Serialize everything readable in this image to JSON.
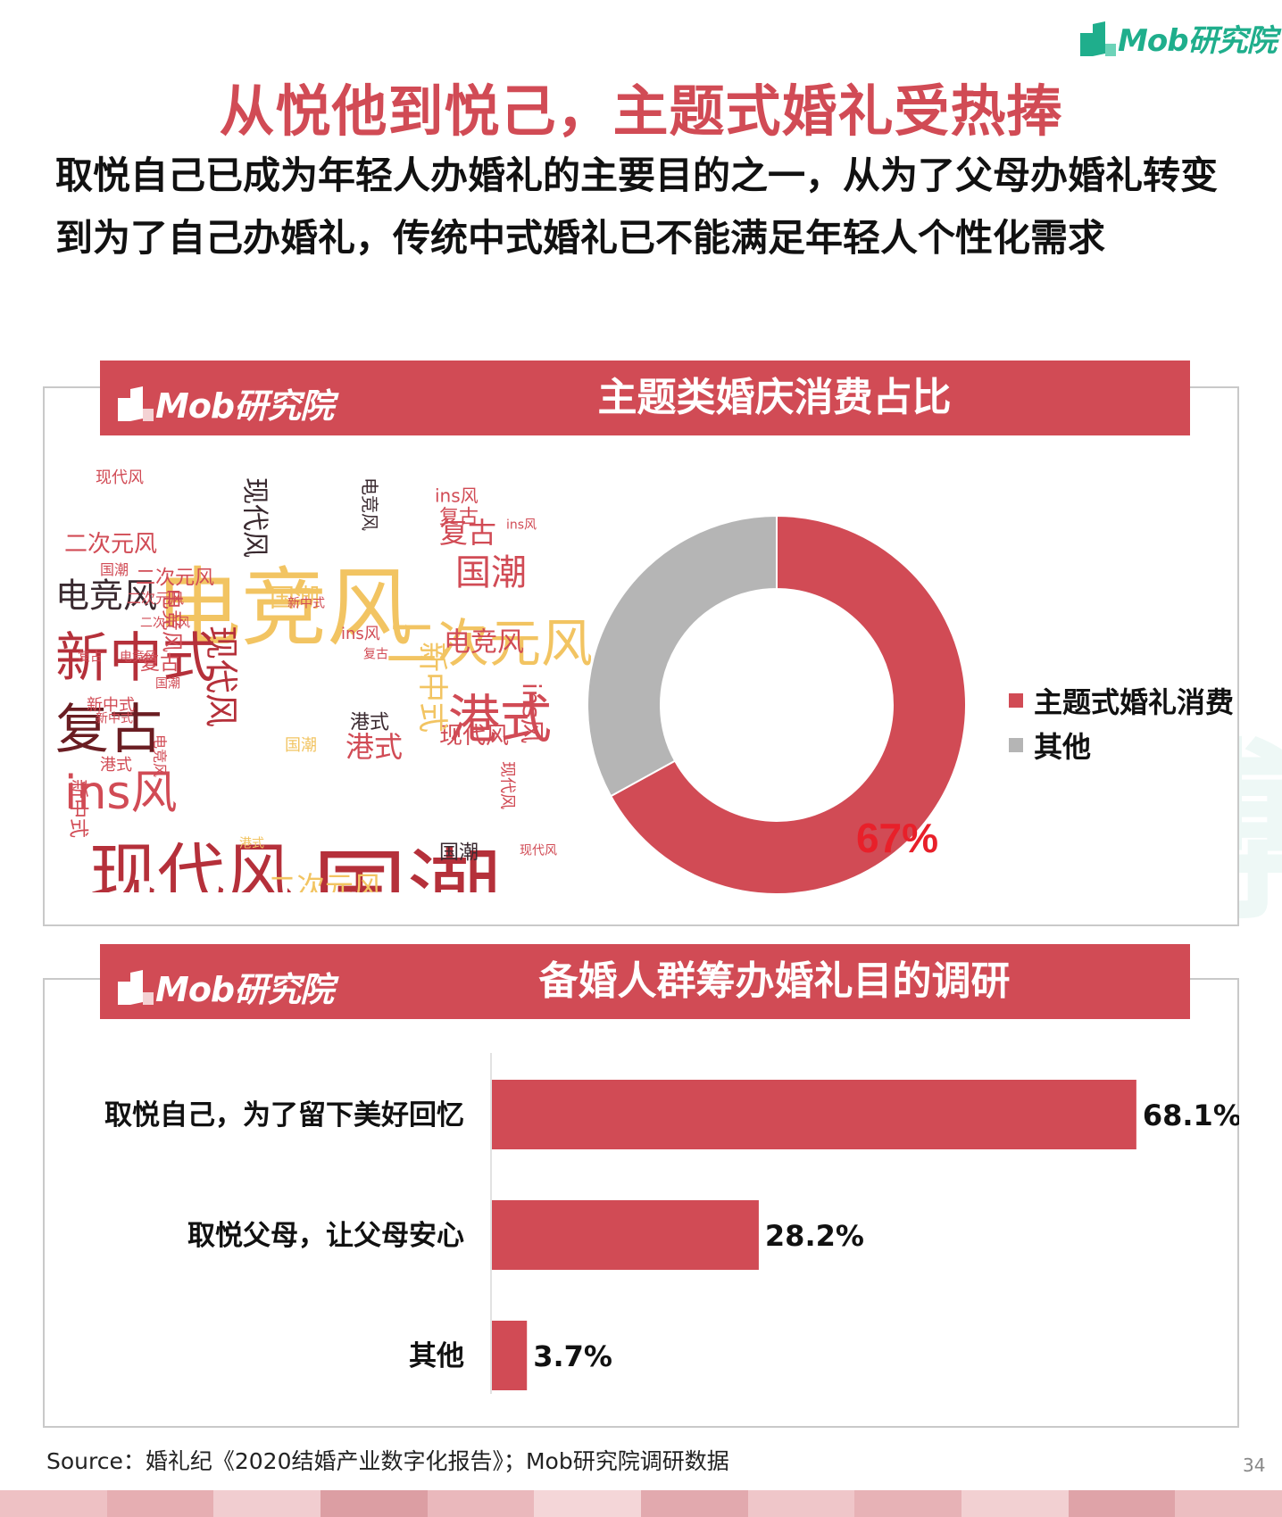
{
  "brand": {
    "name": "Mob研究院"
  },
  "title": "从悦他到悦己，主题式婚礼受热捧",
  "lead": "取悦自己已成为年轻人办婚礼的主要目的之一，从为了父母办婚礼转变到为了自己办婚礼，传统中式婚礼已不能满足年轻人个性化需求",
  "watermark": "MobTech 袤博",
  "panels": [
    {
      "title": "主题类婚庆消费占比"
    },
    {
      "title": "备婚人群筹办婚礼目的调研"
    }
  ],
  "colors": {
    "accent": "#d14b55",
    "brand_green": "#1fae8c",
    "gray": "#b5b5b5",
    "highlight": "#e8202a"
  },
  "chart_data": [
    {
      "type": "pie",
      "title": "主题类婚庆消费占比",
      "donut": true,
      "slices": [
        {
          "label": "主题式婚礼消费",
          "value": 67,
          "color": "#d14b55"
        },
        {
          "label": "其他",
          "value": 33,
          "color": "#b5b5b5"
        }
      ],
      "data_label": "67%",
      "legend": "right"
    },
    {
      "type": "bar",
      "orientation": "horizontal",
      "title": "备婚人群筹办婚礼目的调研",
      "categories": [
        "取悦自己，为了留下美好回忆",
        "取悦父母，让父母安心",
        "其他"
      ],
      "values": [
        68.1,
        28.2,
        3.7
      ],
      "value_labels": [
        "68.1%",
        "28.2%",
        "3.7%"
      ],
      "color": "#d14b55"
    }
  ],
  "wordcloud": [
    {
      "text": "电竞风",
      "color": "#f2c462",
      "dir": "h",
      "size": 96
    },
    {
      "text": "国潮",
      "color": "#b5303a",
      "dir": "h",
      "size": 106
    },
    {
      "text": "现代风",
      "color": "#b5303a",
      "dir": "h",
      "size": 76
    },
    {
      "text": "新中式",
      "color": "#b5303a",
      "dir": "h",
      "size": 60
    },
    {
      "text": "复古",
      "color": "#6a1d22",
      "dir": "h",
      "size": 60
    },
    {
      "text": "二次元风",
      "color": "#f2c462",
      "dir": "h",
      "size": 58
    },
    {
      "text": "港式",
      "color": "#d14b55",
      "dir": "h",
      "size": 58
    },
    {
      "text": "ins风",
      "color": "#d14b55",
      "dir": "h",
      "size": 52
    },
    {
      "text": "电竞风",
      "color": "#3a2a30",
      "dir": "h",
      "size": 38
    },
    {
      "text": "国潮",
      "color": "#d14b55",
      "dir": "h",
      "size": 40
    },
    {
      "text": "复古",
      "color": "#d14b55",
      "dir": "h",
      "size": 32
    },
    {
      "text": "港式",
      "color": "#d14b55",
      "dir": "h",
      "size": 32
    },
    {
      "text": "二次元风",
      "color": "#d14b55",
      "dir": "h",
      "size": 26
    },
    {
      "text": "电竞风",
      "color": "#d14b55",
      "dir": "h",
      "size": 30
    },
    {
      "text": "现代风",
      "color": "#d14b55",
      "dir": "h",
      "size": 26
    },
    {
      "text": "二次元风",
      "color": "#f2c462",
      "dir": "h",
      "size": 32
    },
    {
      "text": "二次元风",
      "color": "#d14b55",
      "dir": "h",
      "size": 22
    },
    {
      "text": "现代风",
      "color": "#d14b55",
      "dir": "h",
      "size": 18
    },
    {
      "text": "ins风",
      "color": "#d14b55",
      "dir": "h",
      "size": 20
    },
    {
      "text": "国潮",
      "color": "#f2c462",
      "dir": "h",
      "size": 28
    },
    {
      "text": "新中式",
      "color": "#d14b55",
      "dir": "h",
      "size": 18
    },
    {
      "text": "港式",
      "color": "#3a2a30",
      "dir": "h",
      "size": 22
    },
    {
      "text": "复古",
      "color": "#d14b55",
      "dir": "h",
      "size": 22
    },
    {
      "text": "复古",
      "color": "#d14b55",
      "dir": "h",
      "size": 22
    },
    {
      "text": "国潮",
      "color": "#3a2a30",
      "dir": "h",
      "size": 22
    },
    {
      "text": "国潮",
      "color": "#d14b55",
      "dir": "h",
      "size": 16
    },
    {
      "text": "二次元风",
      "color": "#d14b55",
      "dir": "h",
      "size": 16
    },
    {
      "text": "二次元风",
      "color": "#d14b55",
      "dir": "h",
      "size": 14
    },
    {
      "text": "ins风",
      "color": "#d14b55",
      "dir": "h",
      "size": 18
    },
    {
      "text": "新中式",
      "color": "#d14b55",
      "dir": "h",
      "size": 14
    },
    {
      "text": "复古",
      "color": "#d14b55",
      "dir": "h",
      "size": 14
    },
    {
      "text": "国潮",
      "color": "#d14b55",
      "dir": "h",
      "size": 14
    },
    {
      "text": "电竞风",
      "color": "#d14b55",
      "dir": "h",
      "size": 14
    },
    {
      "text": "新中式",
      "color": "#d14b55",
      "dir": "h",
      "size": 14
    },
    {
      "text": "现代风",
      "color": "#d14b55",
      "dir": "h",
      "size": 14
    },
    {
      "text": "复古",
      "color": "#d14b55",
      "dir": "h",
      "size": 14
    },
    {
      "text": "国潮",
      "color": "#f2c462",
      "dir": "h",
      "size": 18
    },
    {
      "text": "港式",
      "color": "#f2c462",
      "dir": "h",
      "size": 14
    },
    {
      "text": "港式",
      "color": "#d14b55",
      "dir": "h",
      "size": 18
    },
    {
      "text": "ins风",
      "color": "#d14b55",
      "dir": "h",
      "size": 14
    },
    {
      "text": "现代风",
      "color": "#3a2a30",
      "dir": "v",
      "size": 30
    },
    {
      "text": "电竞风",
      "color": "#3a2a30",
      "dir": "v",
      "size": 20
    },
    {
      "text": "电竞风",
      "color": "#d14b55",
      "dir": "v",
      "size": 24
    },
    {
      "text": "现代风",
      "color": "#b5303a",
      "dir": "v",
      "size": 38
    },
    {
      "text": "新中式",
      "color": "#f2c462",
      "dir": "v",
      "size": 34
    },
    {
      "text": "ins风",
      "color": "#d14b55",
      "dir": "v",
      "size": 28
    },
    {
      "text": "新中式",
      "color": "#d14b55",
      "dir": "v",
      "size": 22
    },
    {
      "text": "电竞风",
      "color": "#d14b55",
      "dir": "v",
      "size": 16
    },
    {
      "text": "现代风",
      "color": "#d14b55",
      "dir": "v",
      "size": 18
    }
  ],
  "source": "Source：婚礼纪《2020结婚产业数字化报告》；Mob研究院调研数据",
  "page_number": "34"
}
